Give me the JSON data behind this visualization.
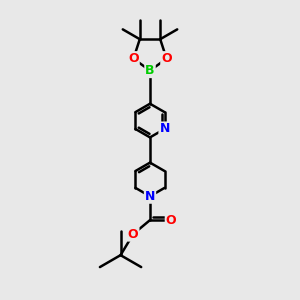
{
  "background_color": "#e8e8e8",
  "bond_color": "#000000",
  "atom_colors": {
    "B": "#00cc00",
    "N": "#0000ff",
    "O": "#ff0000",
    "C": "#000000"
  },
  "bond_width": 1.8,
  "figsize": [
    3.0,
    3.0
  ],
  "dpi": 100
}
